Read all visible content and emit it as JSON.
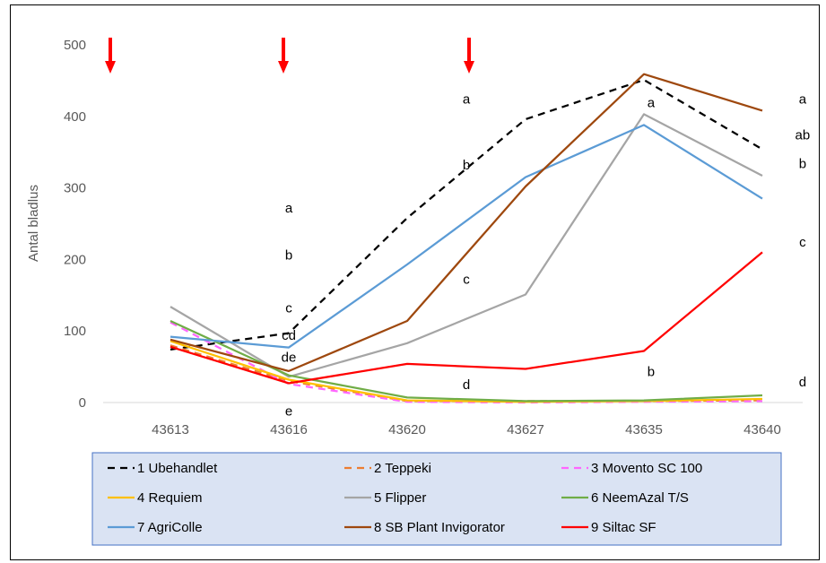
{
  "chart_data": {
    "type": "line",
    "title": "",
    "xlabel": "",
    "ylabel": "Antal bladlus",
    "ylim": [
      0,
      500
    ],
    "yticks": [
      "0",
      "100",
      "200",
      "300",
      "400",
      "500"
    ],
    "categories": [
      "43613",
      "43616",
      "43620",
      "43627",
      "43635",
      "43640"
    ],
    "grid": false,
    "legend_position": "bottom",
    "series": [
      {
        "name": "1 Ubehandlet",
        "color": "#000000",
        "dash": true,
        "values": [
          74,
          97,
          258,
          396,
          451,
          354
        ]
      },
      {
        "name": "2 Teppeki",
        "color": "#ED7D31",
        "dash": true,
        "values": [
          80,
          30,
          2,
          2,
          2,
          3
        ]
      },
      {
        "name": "3 Movento SC 100",
        "color": "#FF66FF",
        "dash": true,
        "values": [
          112,
          26,
          1,
          0,
          1,
          2
        ]
      },
      {
        "name": "4 Requiem",
        "color": "#FFC000",
        "dash": false,
        "values": [
          86,
          32,
          3,
          1,
          2,
          5
        ]
      },
      {
        "name": "5 Flipper",
        "color": "#A5A5A5",
        "dash": false,
        "values": [
          134,
          36,
          83,
          151,
          403,
          317
        ]
      },
      {
        "name": "6 NeemAzal T/S",
        "color": "#70AD47",
        "dash": false,
        "values": [
          114,
          38,
          7,
          2,
          3,
          10
        ]
      },
      {
        "name": "7 AgriColle",
        "color": "#5B9BD5",
        "dash": false,
        "values": [
          92,
          77,
          193,
          315,
          388,
          285
        ]
      },
      {
        "name": "8 SB Plant Invigorator",
        "color": "#9E480E",
        "dash": false,
        "values": [
          88,
          44,
          114,
          302,
          459,
          408
        ]
      },
      {
        "name": "9 Siltac SF",
        "color": "#FF0000",
        "dash": false,
        "values": [
          78,
          27,
          54,
          47,
          72,
          210
        ]
      }
    ],
    "application_arrows": {
      "color": "#FF0000",
      "count": 3
    },
    "annotations": [
      {
        "text": "a",
        "x": 43616,
        "y": 272
      },
      {
        "text": "b",
        "x": 43616,
        "y": 206
      },
      {
        "text": "c",
        "x": 43616,
        "y": 132
      },
      {
        "text": "cd",
        "x": 43616,
        "y": 94
      },
      {
        "text": "de",
        "x": 43616,
        "y": 63
      },
      {
        "text": "e",
        "x": 43616,
        "y": -12
      },
      {
        "text": "a",
        "x": 43623.5,
        "y": 424
      },
      {
        "text": "b",
        "x": 43623.5,
        "y": 332
      },
      {
        "text": "c",
        "x": 43623.5,
        "y": 172
      },
      {
        "text": "d",
        "x": 43623.5,
        "y": 25
      },
      {
        "text": "a",
        "x": 43635.3,
        "y": 419
      },
      {
        "text": "b",
        "x": 43635.3,
        "y": 43
      },
      {
        "text": "a",
        "x": 43641.7,
        "y": 424
      },
      {
        "text": "ab",
        "x": 43641.7,
        "y": 374
      },
      {
        "text": "b",
        "x": 43641.7,
        "y": 334
      },
      {
        "text": "c",
        "x": 43641.7,
        "y": 224
      },
      {
        "text": "d",
        "x": 43641.7,
        "y": 29
      }
    ]
  }
}
